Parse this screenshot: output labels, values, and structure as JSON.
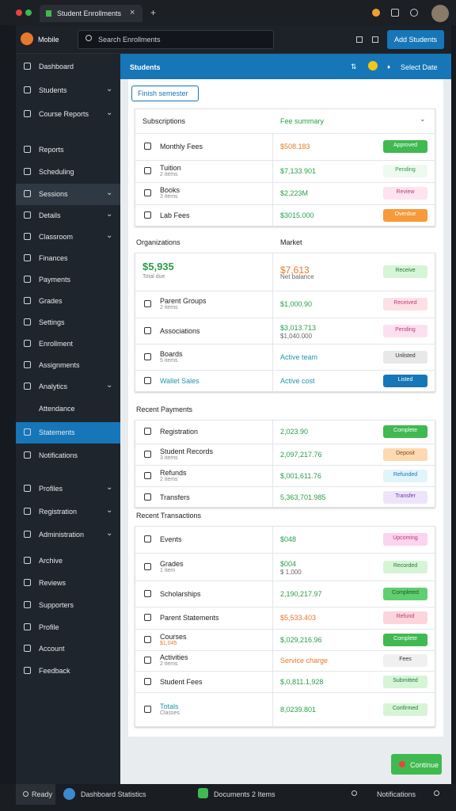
{
  "browser": {
    "tab_title": "Student Enrollments"
  },
  "header": {
    "app_name": "Mobile",
    "search_placeholder": "Search Enrollments",
    "button": "Add Students"
  },
  "sidebar": [
    {
      "label": "Dashboard"
    },
    {
      "label": "Students",
      "expand": true
    },
    {
      "label": "Course Reports",
      "expand": true
    },
    {
      "label": "Reports"
    },
    {
      "label": "Scheduling"
    },
    {
      "label": "Sessions",
      "expand": true,
      "highlight": "gray"
    },
    {
      "label": "Details",
      "expand": true
    },
    {
      "label": "Classroom",
      "expand": true
    },
    {
      "label": "Finances"
    },
    {
      "label": "Payments"
    },
    {
      "label": "Grades"
    },
    {
      "label": "Settings"
    },
    {
      "label": "Enrollment"
    },
    {
      "label": "Assignments"
    },
    {
      "label": "Analytics",
      "expand": true
    },
    {
      "label": "Attendance",
      "sub": true
    },
    {
      "label": "Statements",
      "highlight": "blue"
    },
    {
      "label": "Notifications"
    },
    {
      "label": "Profiles",
      "expand": true
    },
    {
      "label": "Registration",
      "expand": true
    },
    {
      "label": "Administration",
      "expand": true
    },
    {
      "label": "Archive"
    },
    {
      "label": "Reviews"
    },
    {
      "label": "Supporters"
    },
    {
      "label": "Profile"
    },
    {
      "label": "Account"
    },
    {
      "label": "Feedback"
    }
  ],
  "main": {
    "title": "Students",
    "date": "Select Date",
    "action": "Finish semester",
    "sections": [
      {
        "title": "Subscriptions",
        "title2": "Fee summary",
        "rows": [
          {
            "label": "Monthly Fees",
            "value": "$508.183",
            "value_color": "#e8792a",
            "status": "Approved",
            "bg": "#3fb950",
            "fg": "#ffffff"
          },
          {
            "label": "Tuition",
            "sub": "2 items",
            "value": "$7,133.901",
            "status": "Pending",
            "bg": "#eefaf0",
            "fg": "#2a9d4a"
          },
          {
            "label": "Books",
            "sub": "3 items",
            "value": "$2,223M",
            "status": "Review",
            "bg": "#fde4ef",
            "fg": "#c0397a"
          },
          {
            "label": "Lab Fees",
            "value": "$3015.000",
            "status": "Overdue",
            "bg": "#f79a3a",
            "fg": "#ffffff"
          }
        ]
      },
      {
        "title": "Organizations",
        "title2": "Market",
        "rows": [
          {
            "big": "$5,935",
            "sub": "Total due",
            "value": "$7,613",
            "value_sub": "Net balance",
            "value_color": "#e8792a",
            "status": "Receive",
            "bg": "#d6f5d6",
            "fg": "#2a7a3a"
          },
          {
            "label": "Parent Groups",
            "sub": "2 items",
            "value": "$1,000.90",
            "status": "Received",
            "bg": "#fde0e6",
            "fg": "#c0397a"
          },
          {
            "label": "Associations",
            "value": "$3,013.713",
            "value_sub": "$1,040.000",
            "status": "Pending",
            "bg": "#fde0ef",
            "fg": "#c0397a"
          },
          {
            "label": "Boards",
            "sub": "5 items",
            "value": "Active team",
            "value_color": "#2196a8",
            "status": "Unlisted",
            "bg": "#e8e8e8",
            "fg": "#333333"
          },
          {
            "label": "Wallet Sales",
            "label_color": "#2196a8",
            "value": "Active cost",
            "value_color": "#2196a8",
            "status": "Listed",
            "bg": "#1676b8",
            "fg": "#ffffff"
          }
        ]
      },
      {
        "title": "Recent Payments",
        "rows": [
          {
            "label": "Registration",
            "value": "2,023.90",
            "status": "Complete",
            "bg": "#3fb950",
            "fg": "#ffffff"
          },
          {
            "label": "Student Records",
            "sub": "3 items",
            "value": "2,097,217.76",
            "status": "Deposit",
            "bg": "#fcd9b0",
            "fg": "#8a4a10"
          },
          {
            "label": "Refunds",
            "sub": "2 items",
            "value": "$,001,611.76",
            "status": "Refunded",
            "bg": "#e2f4fb",
            "fg": "#1676b8"
          },
          {
            "label": "Transfers",
            "value": "5,363,701.985",
            "status": "Transfer",
            "bg": "#eee4fa",
            "fg": "#6a3aa8"
          }
        ]
      },
      {
        "title": "Recent Transactions",
        "rows": [
          {
            "label": "Events",
            "value": "$048",
            "status": "Upcoming",
            "bg": "#fbd4ee",
            "fg": "#c0397a"
          },
          {
            "label": "Grades",
            "sub": "1 item",
            "value": "$004",
            "value_sub": "$ 1,000",
            "status": "Recorded",
            "bg": "#d6f5d6",
            "fg": "#2a7a3a"
          },
          {
            "label": "Scholarships",
            "value": "2,190,217.97",
            "status": "Completed",
            "bg": "#5fcf6f",
            "fg": "#1d5a28"
          },
          {
            "label": "Parent Statements",
            "value": "$5,533.403",
            "value_color": "#e8792a",
            "status": "Refund",
            "bg": "#fbd4dc",
            "fg": "#c0397a"
          },
          {
            "label": "Courses",
            "sub": "$1,045",
            "sub_color": "#e8792a",
            "value": "$,029,216.96",
            "status": "Complete",
            "bg": "#3fb950",
            "fg": "#ffffff"
          },
          {
            "label": "Activities",
            "sub": "2 items",
            "value": "Service charge",
            "value_color": "#e8792a",
            "status": "Fees",
            "bg": "#f0f0f0",
            "fg": "#333333"
          },
          {
            "label": "Student Fees",
            "value": "$,0,811.1,928",
            "status": "Submitted",
            "bg": "#d6f5d6",
            "fg": "#2a7a3a"
          },
          {
            "label": "Totals",
            "sub": "Classes",
            "label_color": "#2196a8",
            "value": "8,0239.801",
            "status": "Confirmed",
            "bg": "#d6f5d6",
            "fg": "#2a7a3a"
          }
        ]
      }
    ],
    "float_button": "Continue"
  },
  "footer": {
    "status": "Ready",
    "left": "Dashboard Statistics",
    "center": "Documents 2 Items",
    "right": "Notifications"
  }
}
